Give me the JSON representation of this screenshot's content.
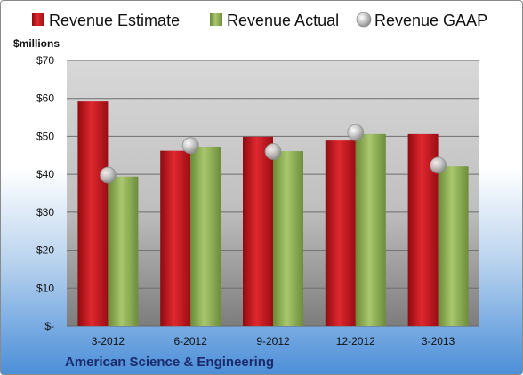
{
  "chart_data": {
    "type": "bar",
    "categories": [
      "3-2012",
      "6-2012",
      "9-2012",
      "12-2012",
      "3-2013"
    ],
    "series": [
      {
        "name": "Revenue Estimate",
        "values": [
          59.2,
          46.2,
          49.9,
          48.9,
          50.6
        ],
        "color": "#c0141c"
      },
      {
        "name": "Revenue Actual",
        "values": [
          39.4,
          47.3,
          46.1,
          50.6,
          42.1
        ],
        "color": "#8fb158"
      },
      {
        "name": "Revenue GAAP",
        "values": [
          39.8,
          47.6,
          46.0,
          51.0,
          42.4
        ],
        "color": "#b8b8b8",
        "marker": "circle"
      }
    ],
    "ylabel": "$millions",
    "ylim": [
      0,
      70
    ],
    "yticks": [
      0,
      10,
      20,
      30,
      40,
      50,
      60,
      70
    ],
    "ytick_labels": [
      "$-",
      "$10",
      "$20",
      "$30",
      "$40",
      "$50",
      "$60",
      "$70"
    ],
    "grid": true,
    "legend_position": "top",
    "footer": "American Science & Engineering"
  }
}
